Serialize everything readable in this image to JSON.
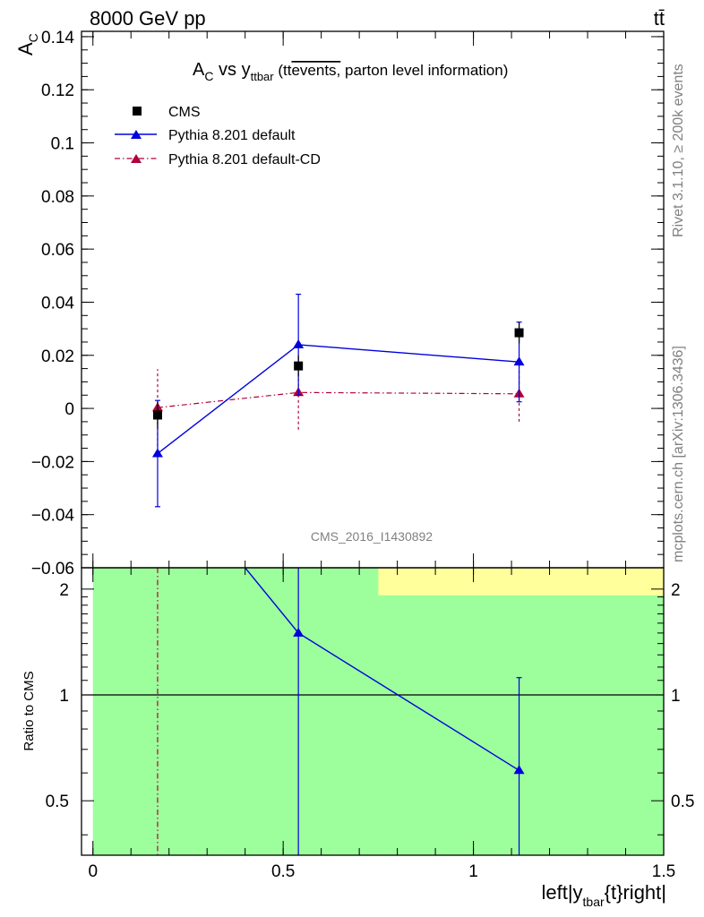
{
  "header": {
    "energy_label": "8000 GeV pp",
    "process_label": "tt̄"
  },
  "side_text": {
    "rivet": "Rivet 3.1.10, ≥ 200k events",
    "site": "mcplots.cern.ch [arXiv:1306.3436]"
  },
  "chart_data": [
    {
      "type": "scatter",
      "title": {
        "main": "A",
        "main_sub": "C",
        "vs": " vs y",
        "vs_sub": "ttbar",
        "paren_open": " (tt",
        "overlined": "events,",
        "rest": " parton level information)"
      },
      "ylabel": "A",
      "ylabel_sub": "C",
      "ylim": [
        -0.06,
        0.142
      ],
      "xlim": [
        -0.03,
        1.5
      ],
      "yticks": [
        -0.06,
        -0.04,
        -0.02,
        0,
        0.02,
        0.04,
        0.06,
        0.08,
        0.1,
        0.12,
        0.14
      ],
      "ytick_labels": [
        "−0.06",
        "−0.04",
        "−0.02",
        "0",
        "0.02",
        "0.04",
        "0.06",
        "0.08",
        "0.1",
        "0.12",
        "0.14"
      ],
      "watermark": "CMS_2016_I1430892",
      "legend_position": "top-left",
      "series": [
        {
          "name": "CMS",
          "style": "marker-square",
          "color": "#000000",
          "x": [
            0.17,
            0.54,
            1.12
          ],
          "y": [
            -0.0025,
            0.016,
            0.0285
          ],
          "yerr": [
            0.005,
            0.004,
            0.004
          ]
        },
        {
          "name": "Pythia 8.201 default",
          "style": "line-triangle",
          "color": "#0000dd",
          "x": [
            0.17,
            0.54,
            1.12
          ],
          "y": [
            -0.017,
            0.024,
            0.0175
          ],
          "yerr": [
            0.02,
            0.019,
            0.015
          ]
        },
        {
          "name": "Pythia 8.201 default-CD",
          "style": "dashdot-triangle",
          "color": "#b0003a",
          "x": [
            0.17,
            0.54,
            1.12
          ],
          "y": [
            0.0003,
            0.006,
            0.0055
          ],
          "yerr": [
            0.0145,
            0.014,
            0.0105
          ]
        }
      ]
    },
    {
      "type": "line",
      "ylabel": "Ratio to CMS",
      "xlabel": "left|y",
      "xlabel_sub": "tbar",
      "xlabel_rest": "{t}right|",
      "ylog": true,
      "ylim": [
        0.35,
        2.3
      ],
      "xlim": [
        -0.03,
        1.5
      ],
      "yticks": [
        0.5,
        1,
        2
      ],
      "ytick_labels": [
        "0.5",
        "1",
        "2"
      ],
      "xticks": [
        0,
        0.5,
        1,
        1.5
      ],
      "xtick_labels": [
        "0",
        "0.5",
        "1",
        "1.5"
      ],
      "bands": [
        {
          "name": "green",
          "color": "#9cff9c",
          "x0": 0.0,
          "x1": 1.5,
          "y0": 0.35,
          "y1": 2.3
        },
        {
          "name": "yellow",
          "color": "#ffff9c",
          "x0": 0.75,
          "x1": 1.5,
          "y0": 1.92,
          "y1": 2.3
        }
      ],
      "reference_line": 1,
      "series": [
        {
          "name": "Pythia 8.201 default",
          "color": "#0000dd",
          "x": [
            0.4,
            0.54,
            1.12
          ],
          "y": [
            2.3,
            1.5,
            0.61
          ],
          "marker_x": [
            0.54,
            1.12
          ],
          "marker_y": [
            1.5,
            0.61
          ],
          "err_lo": [
            0.35,
            0.35
          ],
          "err_hi": [
            2.3,
            1.12
          ]
        },
        {
          "name": "Pythia 8.201 default-CD",
          "color": "#b0003a",
          "vline_x": 0.17
        }
      ]
    }
  ]
}
